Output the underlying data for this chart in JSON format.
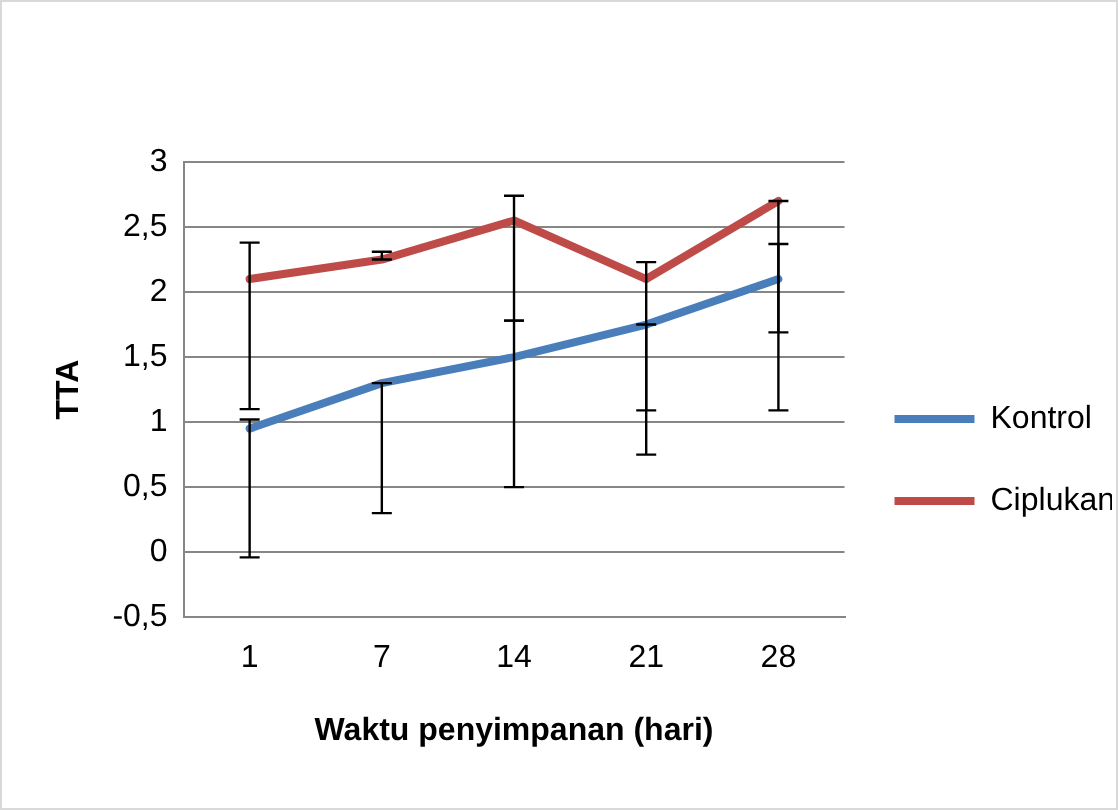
{
  "chart_data": {
    "type": "line",
    "xlabel": "Waktu penyimpanan (hari)",
    "ylabel": "TTA",
    "categories": [
      "1",
      "7",
      "14",
      "21",
      "28"
    ],
    "series": [
      {
        "name": "Kontrol",
        "color": "#4a7ebb",
        "values": [
          0.95,
          1.3,
          1.5,
          1.75,
          2.1
        ],
        "errors": [
          [
            -0.04,
            1.02
          ],
          [
            0.3,
            1.3
          ],
          [
            0.5,
            1.78
          ],
          [
            0.75,
            1.75
          ],
          [
            1.09,
            2.37
          ]
        ]
      },
      {
        "name": "Ciplukan",
        "color": "#be4b48",
        "values": [
          2.1,
          2.25,
          2.55,
          2.1,
          2.7
        ],
        "errors": [
          [
            1.1,
            2.38
          ],
          [
            2.25,
            2.31
          ],
          [
            1.78,
            2.74
          ],
          [
            1.09,
            2.23
          ],
          [
            1.69,
            2.7
          ]
        ]
      }
    ],
    "ylim": [
      -0.5,
      3
    ],
    "yticks": [
      {
        "value": -0.5,
        "label": "-0,5"
      },
      0,
      {
        "value": 0.5,
        "label": "0,5"
      },
      1,
      {
        "value": 1.5,
        "label": "1,5"
      },
      2,
      {
        "value": 2.5,
        "label": "2,5"
      },
      3
    ],
    "grid": "y",
    "legend": "right",
    "marker": "none",
    "line_style": "solid"
  }
}
